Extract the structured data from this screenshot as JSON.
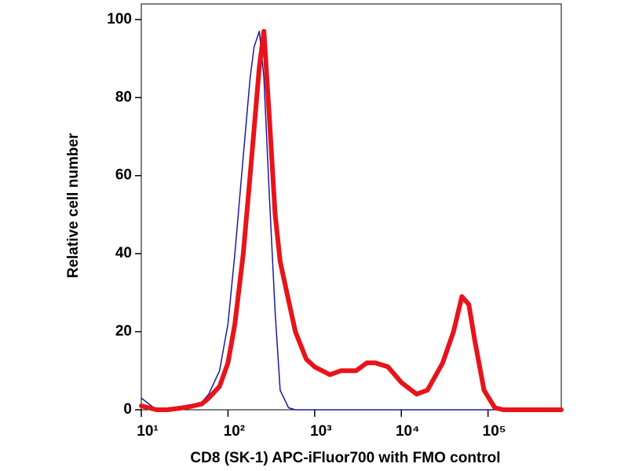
{
  "chart_data": {
    "type": "line",
    "x_label": "CD8 (SK-1) APC-iFluor700 with FMO control",
    "y_label": "Relative cell number",
    "xscale": "log",
    "x": [
      10,
      15,
      20,
      30,
      40,
      50,
      60,
      80,
      100,
      120,
      150,
      180,
      200,
      230,
      260,
      300,
      350,
      400,
      500,
      600,
      800,
      1000,
      1500,
      2000,
      3000,
      4000,
      5000,
      7000,
      10000,
      15000,
      20000,
      30000,
      40000,
      50000,
      60000,
      70000,
      90000,
      120000,
      150000,
      200000,
      300000,
      700000
    ],
    "series": [
      {
        "color": "#1a1aa0",
        "width": 1.5,
        "values": [
          3,
          0,
          0,
          0.5,
          1,
          2,
          4,
          10,
          22,
          40,
          65,
          85,
          93,
          97,
          85,
          55,
          25,
          5,
          0.5,
          0,
          0,
          0,
          0,
          0,
          0,
          0,
          0,
          0,
          0,
          0,
          0,
          0,
          0,
          0,
          0,
          0,
          0,
          0,
          0,
          0,
          0,
          0
        ]
      },
      {
        "color": "#e8141b",
        "width": 6,
        "values": [
          1,
          0,
          0,
          0.5,
          1,
          1.5,
          3,
          6,
          12,
          22,
          40,
          60,
          72,
          88,
          97,
          75,
          50,
          38,
          28,
          20,
          13,
          11,
          9,
          10,
          10,
          12,
          12,
          11,
          7,
          4,
          5,
          12,
          20,
          29,
          27,
          18,
          5,
          0.5,
          0,
          0,
          0,
          0
        ]
      }
    ],
    "xlim": [
      10,
      700000
    ],
    "xticks": [
      {
        "value": 10,
        "label": "10¹"
      },
      {
        "value": 100,
        "label": "10²"
      },
      {
        "value": 1000,
        "label": "10³"
      },
      {
        "value": 10000,
        "label": "10⁴"
      },
      {
        "value": 100000,
        "label": "10⁵"
      }
    ],
    "ylim": [
      0,
      104
    ],
    "yticks": [
      0,
      20,
      40,
      60,
      80,
      100
    ]
  }
}
